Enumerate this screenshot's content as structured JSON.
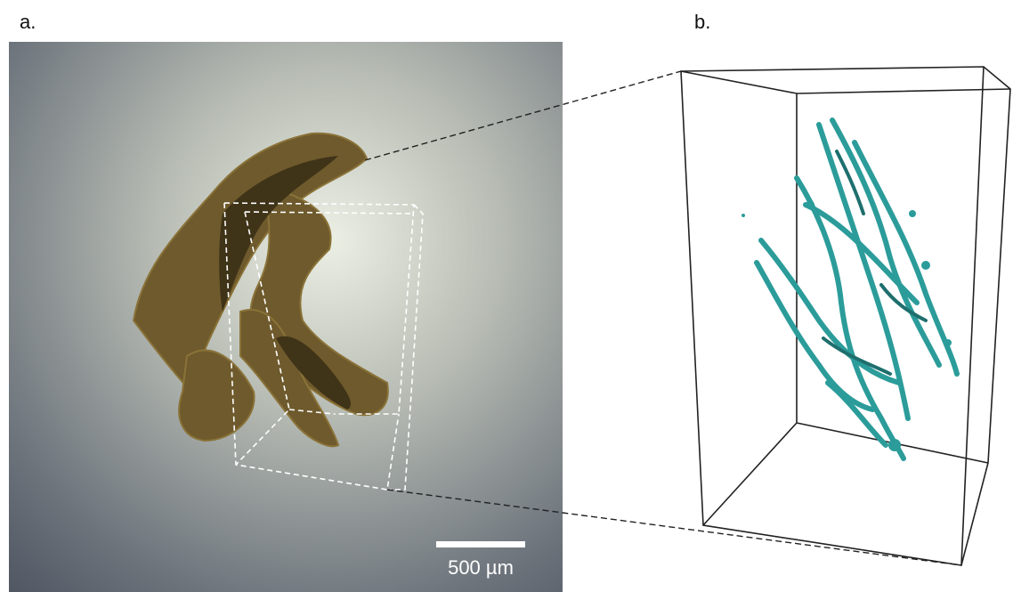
{
  "panel_a": {
    "label": "a.",
    "scale_bar": "500 µm"
  },
  "panel_b": {
    "label": "b."
  }
}
